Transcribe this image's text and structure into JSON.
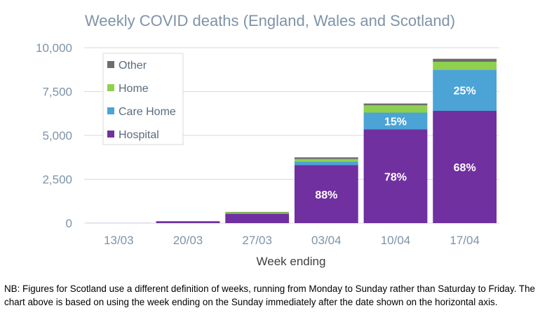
{
  "chart_data": {
    "type": "bar",
    "stacked": true,
    "title": "Weekly COVID deaths (England, Wales and Scotland)",
    "xlabel": "Week ending",
    "ylabel": "",
    "ylim": [
      0,
      10000
    ],
    "yticks": [
      0,
      2500,
      5000,
      7500,
      10000
    ],
    "ytick_labels": [
      "0",
      "2,500",
      "5,000",
      "7,500",
      "10,000"
    ],
    "grid": true,
    "legend_position": "top-left",
    "categories": [
      "13/03",
      "20/03",
      "27/03",
      "03/04",
      "10/04",
      "17/04"
    ],
    "series": [
      {
        "name": "Hospital",
        "color": "#7030a0",
        "values": [
          5,
          100,
          520,
          3300,
          5340,
          6400
        ]
      },
      {
        "name": "Care Home",
        "color": "#4ba3d6",
        "values": [
          0,
          5,
          40,
          200,
          960,
          2350
        ]
      },
      {
        "name": "Home",
        "color": "#8fd14f",
        "values": [
          0,
          10,
          60,
          150,
          420,
          450
        ]
      },
      {
        "name": "Other",
        "color": "#6d6d6d",
        "values": [
          0,
          5,
          20,
          100,
          100,
          170
        ]
      }
    ],
    "annotations": [
      {
        "category": "03/04",
        "series": "Hospital",
        "text": "88%"
      },
      {
        "category": "10/04",
        "series": "Hospital",
        "text": "78%"
      },
      {
        "category": "10/04",
        "series": "Care Home",
        "text": "15%"
      },
      {
        "category": "17/04",
        "series": "Hospital",
        "text": "68%"
      },
      {
        "category": "17/04",
        "series": "Care Home",
        "text": "25%"
      }
    ]
  },
  "colors": {
    "title": "#7f93a7",
    "axis_text": "#7f93a7",
    "xlabel": "#404040",
    "gridline": "#d9d9d9",
    "legend_text": "#5a6b7d",
    "annotation_text": "#ffffff"
  },
  "note": "NB: Figures for Scotland use a different definition of weeks, running from Monday to Sunday rather than Saturday to Friday. The chart above is based on using the week ending on the Sunday immediately after the date shown on the horizontal axis."
}
